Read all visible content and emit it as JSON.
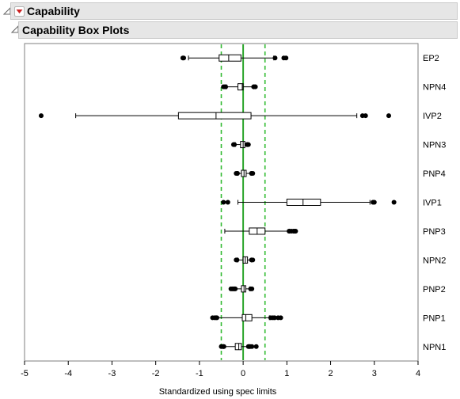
{
  "outline": {
    "title": "Capability",
    "subtitle": "Capability Box Plots"
  },
  "colors": {
    "spec_line": "#33bb33",
    "center_line": "#2aa52a",
    "box_outline": "#000000",
    "point": "#000000",
    "header_bg": "#e6e6e6",
    "red_triangle": "#cc2222"
  },
  "chart_data": {
    "type": "box",
    "orientation": "horizontal",
    "xlabel": "Standardized using spec limits",
    "xlim": [
      -5,
      4
    ],
    "xticks": [
      -5,
      -4,
      -3,
      -2,
      -1,
      0,
      1,
      2,
      3,
      4
    ],
    "reference_lines": [
      {
        "value": -0.5,
        "style": "dashed",
        "color": "#33bb33"
      },
      {
        "value": 0,
        "style": "solid",
        "color": "#2aa52a"
      },
      {
        "value": 0.5,
        "style": "dashed",
        "color": "#33bb33"
      }
    ],
    "series": [
      {
        "name": "EP2",
        "whisker_low": -1.25,
        "q1": -0.55,
        "median": -0.33,
        "q3": -0.05,
        "whisker_high": 0.7,
        "outliers": [
          -1.38,
          -1.36,
          0.73,
          0.93,
          0.98
        ]
      },
      {
        "name": "NPN4",
        "whisker_low": -0.38,
        "q1": -0.12,
        "median": -0.02,
        "q3": 0.0,
        "whisker_high": 0.24,
        "outliers": [
          -0.42,
          -0.45,
          -0.4,
          0.24,
          0.27,
          0.28
        ]
      },
      {
        "name": "IVP2",
        "whisker_low": -3.83,
        "q1": -1.48,
        "median": -0.62,
        "q3": 0.18,
        "whisker_high": 2.6,
        "outliers": [
          -4.62,
          2.73,
          2.8,
          3.33
        ]
      },
      {
        "name": "NPN3",
        "whisker_low": -0.18,
        "q1": -0.06,
        "median": 0.0,
        "q3": 0.04,
        "whisker_high": 0.09,
        "outliers": [
          -0.22,
          -0.2,
          0.09,
          0.1,
          0.12
        ]
      },
      {
        "name": "PNP4",
        "whisker_low": -0.12,
        "q1": -0.04,
        "median": 0.02,
        "q3": 0.07,
        "whisker_high": 0.18,
        "outliers": [
          -0.16,
          -0.13,
          0.19,
          0.22
        ]
      },
      {
        "name": "IVP1",
        "whisker_low": -0.12,
        "q1": 1.0,
        "median": 1.37,
        "q3": 1.77,
        "whisker_high": 2.9,
        "outliers": [
          -0.45,
          -0.35,
          2.97,
          3.0,
          3.45
        ]
      },
      {
        "name": "PNP3",
        "whisker_low": -0.42,
        "q1": 0.14,
        "median": 0.32,
        "q3": 0.5,
        "whisker_high": 1.06,
        "outliers": [
          1.05,
          1.1,
          1.15,
          1.18,
          1.2
        ]
      },
      {
        "name": "NPN2",
        "whisker_low": -0.12,
        "q1": 0.0,
        "median": 0.05,
        "q3": 0.1,
        "whisker_high": 0.19,
        "outliers": [
          -0.16,
          -0.14,
          0.19,
          0.22
        ]
      },
      {
        "name": "PNP2",
        "whisker_low": -0.2,
        "q1": -0.04,
        "median": 0.02,
        "q3": 0.06,
        "whisker_high": 0.15,
        "outliers": [
          -0.28,
          -0.25,
          -0.22,
          -0.18,
          0.17,
          0.2
        ]
      },
      {
        "name": "PNP1",
        "whisker_low": -0.62,
        "q1": -0.02,
        "median": 0.06,
        "q3": 0.2,
        "whisker_high": 0.6,
        "outliers": [
          -0.7,
          -0.65,
          -0.6,
          0.63,
          0.68,
          0.72,
          0.8,
          0.86
        ]
      },
      {
        "name": "NPN1",
        "whisker_low": -0.45,
        "q1": -0.18,
        "median": -0.1,
        "q3": -0.04,
        "whisker_high": 0.14,
        "outliers": [
          -0.5,
          -0.47,
          -0.44,
          0.12,
          0.16,
          0.2,
          0.3
        ]
      }
    ]
  }
}
